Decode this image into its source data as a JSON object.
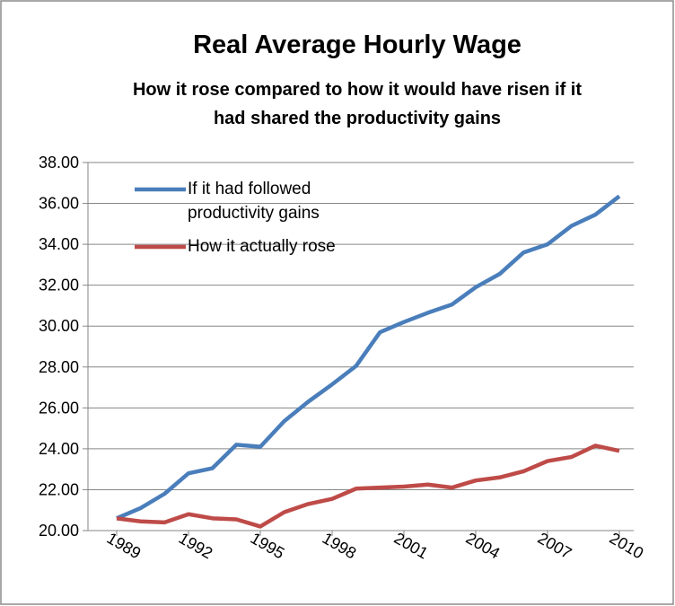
{
  "chart_data": {
    "type": "line",
    "title": "Real Average Hourly Wage",
    "subtitle": "How it rose compared to how it would have risen if it had shared the productivity gains",
    "x": [
      1989,
      1990,
      1991,
      1992,
      1993,
      1994,
      1995,
      1996,
      1997,
      1998,
      1999,
      2000,
      2001,
      2002,
      2003,
      2004,
      2005,
      2006,
      2007,
      2008,
      2009,
      2010
    ],
    "xlim": [
      1987.8,
      2010.6
    ],
    "xticks": [
      1989,
      1992,
      1995,
      1998,
      2001,
      2004,
      2007,
      2010
    ],
    "ylim": [
      20,
      38
    ],
    "yticks": [
      {
        "value": 20,
        "label": "20.00"
      },
      {
        "value": 22,
        "label": "22.00"
      },
      {
        "value": 24,
        "label": "24.00"
      },
      {
        "value": 26,
        "label": "26.00"
      },
      {
        "value": 28,
        "label": "28.00"
      },
      {
        "value": 30,
        "label": "30.00"
      },
      {
        "value": 32,
        "label": "32.00"
      },
      {
        "value": 34,
        "label": "34.00"
      },
      {
        "value": 36,
        "label": "36.00"
      },
      {
        "value": 38,
        "label": "38.00"
      }
    ],
    "grid": true,
    "legend": "upper left",
    "series": [
      {
        "name": "If it had followed productivity gains",
        "color": "#4a7ebb",
        "values": [
          20.6,
          21.1,
          21.8,
          22.8,
          23.05,
          24.2,
          24.1,
          25.35,
          26.3,
          27.15,
          28.05,
          29.7,
          30.2,
          30.65,
          31.05,
          31.9,
          32.55,
          33.6,
          34.0,
          34.9,
          35.45,
          36.35
        ]
      },
      {
        "name": "How it actually rose",
        "color": "#be4b48",
        "values": [
          20.6,
          20.45,
          20.4,
          20.8,
          20.6,
          20.55,
          20.2,
          20.9,
          21.3,
          21.55,
          22.05,
          22.1,
          22.15,
          22.25,
          22.1,
          22.45,
          22.6,
          22.9,
          23.4,
          23.6,
          24.15,
          23.9
        ]
      }
    ]
  }
}
